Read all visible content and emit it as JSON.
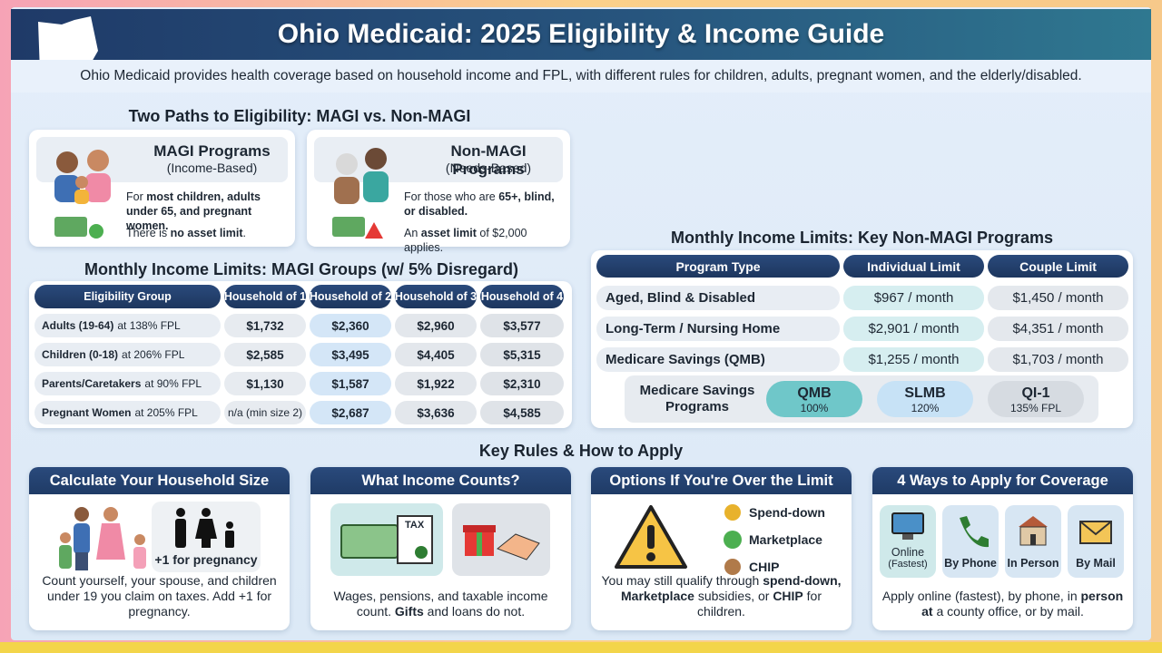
{
  "header": {
    "title": "Ohio Medicaid: 2025 Eligibility & Income Guide",
    "subtitle": "Ohio Medicaid provides health coverage based on household income and FPL, with different rules for children, adults, pregnant women, and the elderly/disabled."
  },
  "paths": {
    "heading": "Two Paths to Eligibility: MAGI vs. Non-MAGI",
    "cards": [
      {
        "title": "MAGI Programs",
        "subtitle": "(Income-Based)",
        "who": [
          "For ",
          "most children, adults under 65, and pregnant women."
        ],
        "asset": [
          "There is ",
          "no asset limit",
          "."
        ]
      },
      {
        "title": "Non-MAGI Programs",
        "subtitle": "(Needs-Based)",
        "who": [
          "For those who are ",
          "65+, blind, or disabled."
        ],
        "asset": [
          "An ",
          "asset limit",
          " of $2,000 applies."
        ]
      }
    ]
  },
  "magi": {
    "heading": "Monthly Income Limits: MAGI Groups (w/ 5% Disregard)",
    "columns": [
      "Eligibility Group",
      "Household of 1",
      "Household of 2",
      "Household of 3",
      "Household of 4"
    ],
    "rows": [
      {
        "group": "Adults (19-64)",
        "fpl": "at 138% FPL",
        "cells": [
          "$1,732",
          "$2,360",
          "$2,960",
          "$3,577"
        ]
      },
      {
        "group": "Children (0-18)",
        "fpl": "at 206% FPL",
        "cells": [
          "$2,585",
          "$3,495",
          "$4,405",
          "$5,315"
        ]
      },
      {
        "group": "Parents/Caretakers",
        "fpl": "at 90% FPL",
        "cells": [
          "$1,130",
          "$1,587",
          "$1,922",
          "$2,310"
        ]
      },
      {
        "group": "Pregnant Women",
        "fpl": "at 205% FPL",
        "cells": [
          "n/a (min size 2)",
          "$2,687",
          "$3,636",
          "$4,585"
        ]
      }
    ]
  },
  "non_magi": {
    "heading": "Monthly Income Limits: Key Non-MAGI Programs",
    "columns": [
      "Program Type",
      "Individual Limit",
      "Couple Limit"
    ],
    "rows": [
      [
        "Aged, Blind & Disabled",
        "$967 / month",
        "$1,450 / month"
      ],
      [
        "Long-Term / Nursing Home",
        "$2,901 / month",
        "$4,351 / month"
      ],
      [
        "Medicare Savings (QMB)",
        "$1,255 / month",
        "$1,703 / month"
      ]
    ],
    "savings": {
      "label": "Medicare Savings Programs",
      "items": [
        {
          "name": "QMB",
          "pct": "100%"
        },
        {
          "name": "SLMB",
          "pct": "120%"
        },
        {
          "name": "QI-1",
          "pct": "135% FPL"
        }
      ]
    }
  },
  "rules": {
    "heading": "Key Rules & How to Apply",
    "household": {
      "title": "Calculate Your Household Size",
      "badge": "+1 for pregnancy",
      "text": "Count yourself, your spouse, and children under 19 you claim on taxes. Add +1 for pregnancy."
    },
    "income": {
      "title": "What Income Counts?",
      "icon_text": "TAX",
      "text": [
        "Wages, pensions, and taxable income count. ",
        "Gifts",
        " and loans do not."
      ]
    },
    "over": {
      "title": "Options If You're Over the Limit",
      "options": [
        "Spend-down",
        "Marketplace",
        "CHIP"
      ],
      "text": [
        "You may still qualify through ",
        "spend-down, Marketplace",
        " subsidies, or ",
        "CHIP",
        " for children."
      ]
    },
    "apply": {
      "title": "4 Ways to Apply for Coverage",
      "ways": [
        {
          "label": "Online",
          "note": "(Fastest)"
        },
        {
          "label": "By Phone"
        },
        {
          "label": "In Person"
        },
        {
          "label": "By Mail"
        }
      ],
      "text": [
        "Apply online (fastest), by phone, in ",
        "person at",
        " a county office, or by mail."
      ]
    }
  }
}
